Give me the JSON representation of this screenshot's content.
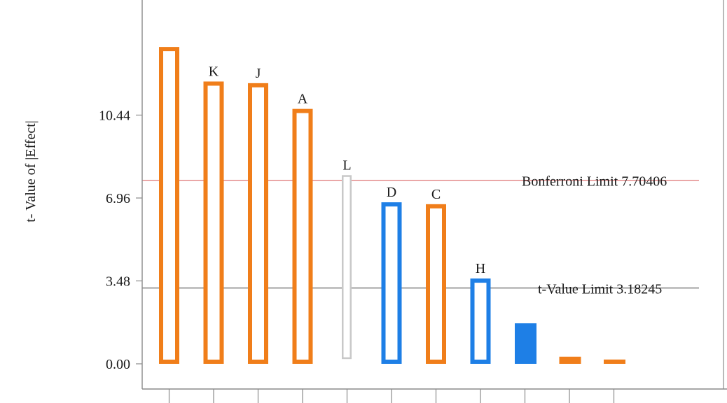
{
  "chart_data": {
    "type": "bar",
    "title": "",
    "xlabel": "",
    "ylabel": "t- Value of |Effect|",
    "ylim": [
      -0.35,
      13.3
    ],
    "yticks": [
      {
        "value": 0.0,
        "label": "0.00"
      },
      {
        "value": 3.48,
        "label": "3.48"
      },
      {
        "value": 6.96,
        "label": "6.96"
      },
      {
        "value": 10.44,
        "label": "10.44"
      }
    ],
    "bars": [
      {
        "label": "",
        "value": 13.3,
        "color": "orange",
        "fill": "hollow"
      },
      {
        "label": "K",
        "value": 11.85,
        "color": "orange",
        "fill": "hollow"
      },
      {
        "label": "J",
        "value": 11.78,
        "color": "orange",
        "fill": "hollow"
      },
      {
        "label": "A",
        "value": 10.7,
        "color": "orange",
        "fill": "hollow"
      },
      {
        "label": "L",
        "value": 7.92,
        "color": "gray",
        "fill": "hollow",
        "bottom": 0.2
      },
      {
        "label": "D",
        "value": 6.78,
        "color": "blue",
        "fill": "hollow"
      },
      {
        "label": "C",
        "value": 6.7,
        "color": "orange",
        "fill": "hollow"
      },
      {
        "label": "H",
        "value": 3.58,
        "color": "blue",
        "fill": "hollow"
      },
      {
        "label": "",
        "value": 1.7,
        "color": "blue",
        "fill": "solid"
      },
      {
        "label": "",
        "value": 0.3,
        "color": "orange",
        "fill": "solid"
      },
      {
        "label": "",
        "value": 0.18,
        "color": "orange",
        "fill": "solid"
      }
    ],
    "reference_lines": [
      {
        "label": "Bonferroni Limit 7.70406",
        "value": 7.70406,
        "color": "#e08080"
      },
      {
        "label": "t-Value Limit 3.18245",
        "value": 3.18245,
        "color": "#808080"
      }
    ],
    "colors": {
      "orange": "#f07e1a",
      "blue": "#1e7fe6",
      "gray": "#c8c8c8",
      "axis": "#8a8a8a"
    },
    "grid": false,
    "legend": "none"
  }
}
